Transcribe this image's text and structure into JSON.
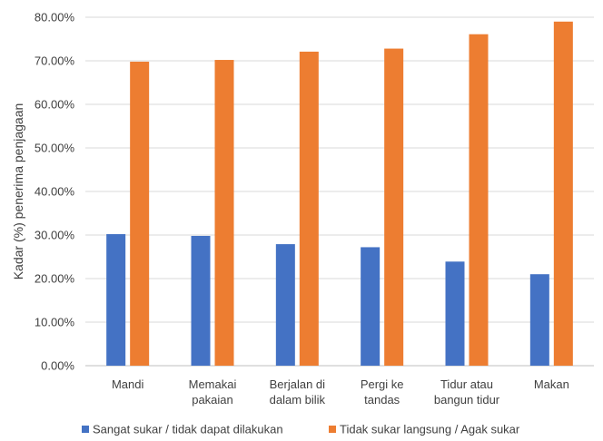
{
  "chart_data": {
    "type": "bar",
    "title": "",
    "xlabel": "",
    "ylabel": "Kadar (%) penerima penjagaan",
    "ylim": [
      0,
      80
    ],
    "y_ticks": [
      "0.00%",
      "10.00%",
      "20.00%",
      "30.00%",
      "40.00%",
      "50.00%",
      "60.00%",
      "70.00%",
      "80.00%"
    ],
    "grid": true,
    "legend": "bottom",
    "categories": [
      [
        "Mandi"
      ],
      [
        "Memakai",
        "pakaian"
      ],
      [
        "Berjalan di",
        "dalam bilik"
      ],
      [
        "Pergi ke",
        "tandas"
      ],
      [
        "Tidur atau",
        "bangun tidur"
      ],
      [
        "Makan"
      ]
    ],
    "series": [
      {
        "name": "Sangat sukar / tidak dapat dilakukan",
        "color": "#4472c4",
        "values": [
          30.2,
          29.8,
          27.9,
          27.2,
          23.9,
          21.0
        ]
      },
      {
        "name": "Tidak sukar langsung / Agak sukar",
        "color": "#ed7d31",
        "values": [
          69.8,
          70.2,
          72.1,
          72.8,
          76.1,
          79.0
        ]
      }
    ]
  }
}
